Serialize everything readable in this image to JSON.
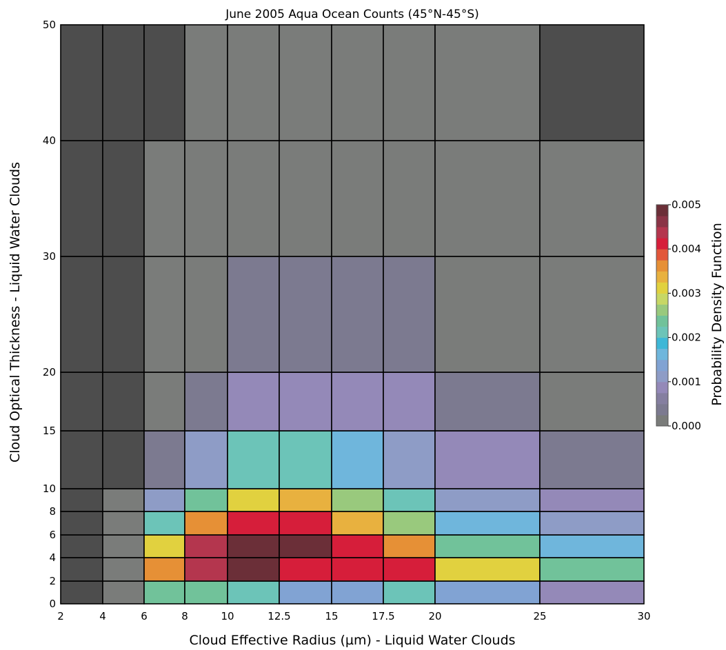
{
  "chart_data": {
    "type": "heatmap",
    "title": "June 2005 Aqua Ocean Counts (45°N-45°S)",
    "xlabel": "Cloud Effective Radius (µm) - Liquid Water Clouds",
    "ylabel": "Cloud Optical Thickness - Liquid Water Clouds",
    "x_bin_edges": [
      2,
      4,
      6,
      8,
      10,
      12.5,
      15,
      17.5,
      20,
      25,
      30
    ],
    "y_bin_edges": [
      0,
      2,
      4,
      6,
      8,
      10,
      15,
      20,
      30,
      40,
      50
    ],
    "x_tick_labels": [
      "2",
      "4",
      "6",
      "8",
      "10",
      "12.5",
      "15",
      "17.5",
      "20",
      "25",
      "30"
    ],
    "y_tick_labels": [
      "0",
      "2",
      "4",
      "6",
      "8",
      "10",
      "15",
      "20",
      "30",
      "40",
      "50"
    ],
    "colorbar": {
      "label": "Probability Density Function",
      "range": [
        0,
        0.005
      ],
      "tick_labels": [
        "0.000",
        "0.001",
        "0.002",
        "0.003",
        "0.004",
        "0.005"
      ],
      "levels": [
        0.00025,
        0.0005,
        0.00075,
        0.001,
        0.00125,
        0.0015,
        0.00175,
        0.002,
        0.00225,
        0.0025,
        0.00275,
        0.003,
        0.00325,
        0.0035,
        0.00375,
        0.004,
        0.00425,
        0.0045,
        0.00475,
        0.005
      ],
      "colors": [
        "#7a7c7a",
        "#7c7a90",
        "#857fa0",
        "#9489b8",
        "#8e9cc6",
        "#81a3d3",
        "#6fb6dc",
        "#3eb7d7",
        "#6cc4b8",
        "#71c29a",
        "#99c97d",
        "#c7d765",
        "#e1d13f",
        "#e8b13f",
        "#e69036",
        "#e2573a",
        "#d61e3a",
        "#b4364e",
        "#8a3446",
        "#6b2f38"
      ]
    },
    "missing_color": "#4d4d4d",
    "values": [
      [
        null,
        0.00025,
        0.0025,
        0.0025,
        0.00225,
        0.0015,
        0.0015,
        0.00225,
        0.0015,
        0.001
      ],
      [
        null,
        0,
        0.00375,
        0.0045,
        0.005,
        0.00425,
        0.00425,
        0.00425,
        0.00325,
        0.0025
      ],
      [
        null,
        0,
        0.00325,
        0.0045,
        0.0055,
        0.005,
        0.00425,
        0.00375,
        0.0025,
        0.00175
      ],
      [
        null,
        0,
        0.00225,
        0.00375,
        0.00425,
        0.00425,
        0.0035,
        0.00275,
        0.00175,
        0.00125
      ],
      [
        null,
        0,
        0.00125,
        0.0025,
        0.00325,
        0.0035,
        0.00275,
        0.00225,
        0.00125,
        0.001
      ],
      [
        null,
        null,
        0.0005,
        0.00125,
        0.00225,
        0.00225,
        0.00175,
        0.00125,
        0.001,
        0.0005
      ],
      [
        null,
        null,
        0,
        0.0005,
        0.001,
        0.001,
        0.001,
        0.001,
        0.0005,
        0
      ],
      [
        null,
        null,
        0,
        0,
        0.0005,
        0.0005,
        0.0005,
        0.0005,
        0,
        0
      ],
      [
        null,
        null,
        0,
        0,
        0,
        0,
        0,
        0,
        0,
        0
      ],
      [
        null,
        null,
        null,
        0,
        0,
        0,
        0,
        0,
        0,
        null
      ]
    ],
    "grid": true
  }
}
